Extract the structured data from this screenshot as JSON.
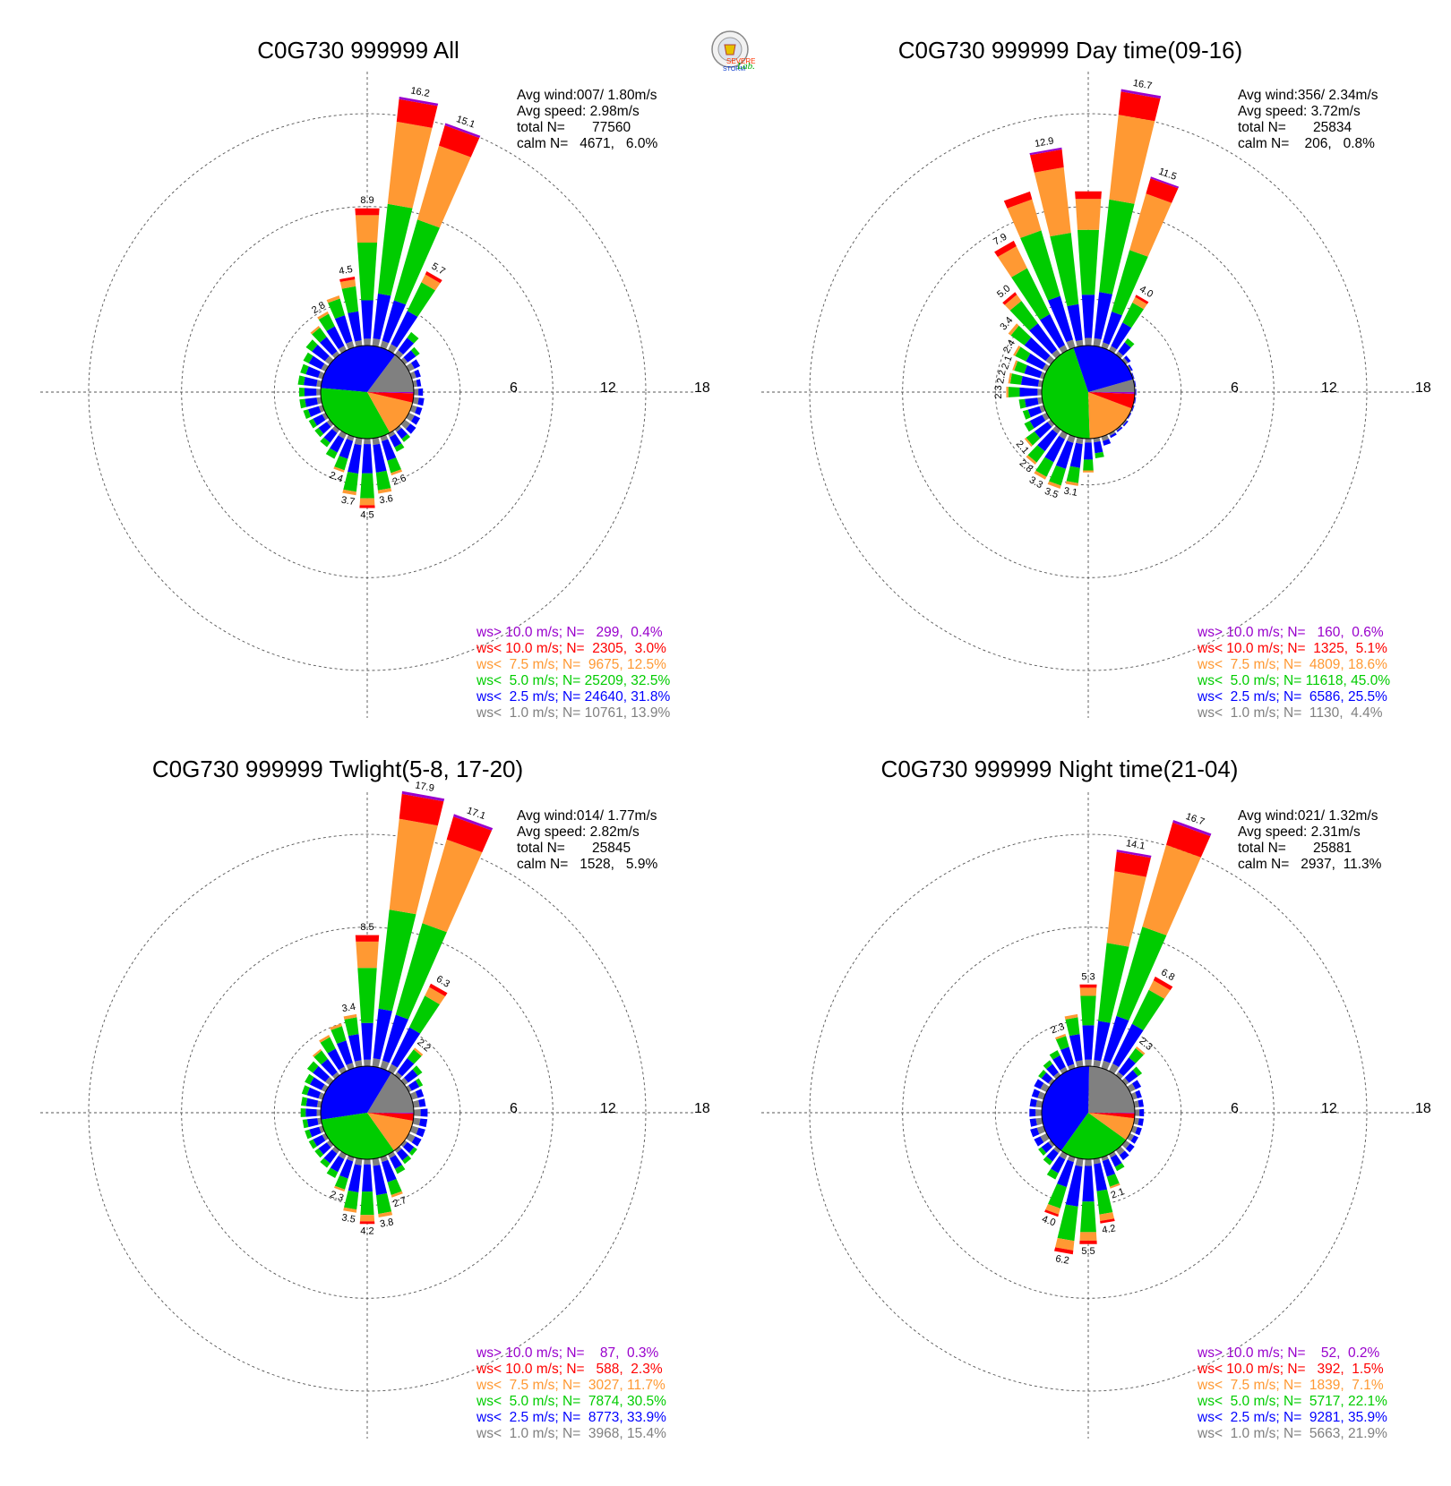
{
  "figure": {
    "colors": {
      "ws_gt_10": "#9900cc",
      "ws_lt_10": "#ff0000",
      "ws_lt_7_5": "#ff9933",
      "ws_lt_5": "#00cc00",
      "ws_lt_2_5": "#0000ff",
      "ws_lt_1": "#808080"
    },
    "logo": {
      "line1": "SEVERE",
      "line2": "STORM",
      "line3": "Lab."
    }
  },
  "chart_data": [
    {
      "type": "wind-rose",
      "title": "C0G730 999999 All",
      "rings": [
        "6",
        "12",
        "18"
      ],
      "rmax": 18,
      "stats": {
        "avg_wind": "Avg wind:007/ 1.80m/s",
        "avg_speed": "Avg speed: 2.98m/s",
        "total": "total N=       77560",
        "calm": "calm N=   4671,   6.0%"
      },
      "legend": [
        {
          "text": "ws> 10.0 m/s; N=   299,  0.4%",
          "color": "#9900cc"
        },
        {
          "text": "ws< 10.0 m/s; N=  2305,  3.0%",
          "color": "#ff0000"
        },
        {
          "text": "ws<  7.5 m/s; N=  9675, 12.5%",
          "color": "#ff9933"
        },
        {
          "text": "ws<  5.0 m/s; N= 25209, 32.5%",
          "color": "#00cc00"
        },
        {
          "text": "ws<  2.5 m/s; N= 24640, 31.8%",
          "color": "#0000ff"
        },
        {
          "text": "ws<  1.0 m/s; N= 10761, 13.9%",
          "color": "#808080"
        }
      ],
      "pie": [
        {
          "bin": "ws<1.0",
          "percent": 13.9
        },
        {
          "bin": "ws<2.5",
          "percent": 31.8
        },
        {
          "bin": "ws<5.0",
          "percent": 32.5
        },
        {
          "bin": "ws<7.5",
          "percent": 12.5
        },
        {
          "bin": "ws<10.0",
          "percent": 3.0
        },
        {
          "bin": "ws>10.0",
          "percent": 0.4
        }
      ],
      "directions": [
        {
          "deg": 0,
          "total": 8.9,
          "label": "8.9"
        },
        {
          "deg": 10,
          "total": 16.2,
          "label": "16.2"
        },
        {
          "deg": 20,
          "total": 15.1,
          "label": "15.1"
        },
        {
          "deg": 30,
          "total": 5.7,
          "label": "5.7"
        },
        {
          "deg": 40,
          "total": 1.8
        },
        {
          "deg": 50,
          "total": 1.2
        },
        {
          "deg": 60,
          "total": 0.8
        },
        {
          "deg": 70,
          "total": 0.6
        },
        {
          "deg": 80,
          "total": 0.5
        },
        {
          "deg": 90,
          "total": 0.6
        },
        {
          "deg": 100,
          "total": 0.7
        },
        {
          "deg": 110,
          "total": 0.7
        },
        {
          "deg": 120,
          "total": 0.8
        },
        {
          "deg": 130,
          "total": 0.9
        },
        {
          "deg": 140,
          "total": 1.0
        },
        {
          "deg": 150,
          "total": 1.3
        },
        {
          "deg": 160,
          "total": 2.6,
          "label": "2.6"
        },
        {
          "deg": 170,
          "total": 3.6,
          "label": "3.6"
        },
        {
          "deg": 180,
          "total": 4.5,
          "label": "4.5"
        },
        {
          "deg": 190,
          "total": 3.7,
          "label": "3.7"
        },
        {
          "deg": 200,
          "total": 2.4,
          "label": "2.4"
        },
        {
          "deg": 210,
          "total": 1.8
        },
        {
          "deg": 220,
          "total": 1.4
        },
        {
          "deg": 230,
          "total": 1.2
        },
        {
          "deg": 240,
          "total": 1.2
        },
        {
          "deg": 250,
          "total": 1.3
        },
        {
          "deg": 260,
          "total": 1.4
        },
        {
          "deg": 270,
          "total": 1.4
        },
        {
          "deg": 280,
          "total": 1.5
        },
        {
          "deg": 290,
          "total": 1.5
        },
        {
          "deg": 300,
          "total": 1.6
        },
        {
          "deg": 310,
          "total": 1.9
        },
        {
          "deg": 320,
          "total": 2.3
        },
        {
          "deg": 330,
          "total": 2.8,
          "label": "2.8"
        },
        {
          "deg": 340,
          "total": 3.5
        },
        {
          "deg": 350,
          "total": 4.5,
          "label": "4.5"
        }
      ]
    },
    {
      "type": "wind-rose",
      "title": "C0G730 999999 Day time(09-16)",
      "rings": [
        "6",
        "12",
        "18"
      ],
      "rmax": 18,
      "stats": {
        "avg_wind": "Avg wind:356/ 2.34m/s",
        "avg_speed": "Avg speed: 3.72m/s",
        "total": "total N=       25834",
        "calm": "calm N=    206,   0.8%"
      },
      "legend": [
        {
          "text": "ws> 10.0 m/s; N=   160,  0.6%",
          "color": "#9900cc"
        },
        {
          "text": "ws< 10.0 m/s; N=  1325,  5.1%",
          "color": "#ff0000"
        },
        {
          "text": "ws<  7.5 m/s; N=  4809, 18.6%",
          "color": "#ff9933"
        },
        {
          "text": "ws<  5.0 m/s; N= 11618, 45.0%",
          "color": "#00cc00"
        },
        {
          "text": "ws<  2.5 m/s; N=  6586, 25.5%",
          "color": "#0000ff"
        },
        {
          "text": "ws<  1.0 m/s; N=  1130,  4.4%",
          "color": "#808080"
        }
      ],
      "pie": [
        {
          "bin": "ws<1.0",
          "percent": 4.4
        },
        {
          "bin": "ws<2.5",
          "percent": 25.5
        },
        {
          "bin": "ws<5.0",
          "percent": 45.0
        },
        {
          "bin": "ws<7.5",
          "percent": 18.6
        },
        {
          "bin": "ws<10.0",
          "percent": 5.1
        },
        {
          "bin": "ws>10.0",
          "percent": 0.6
        }
      ],
      "directions": [
        {
          "deg": 0,
          "total": 10.0
        },
        {
          "deg": 10,
          "total": 16.7,
          "label": "16.7"
        },
        {
          "deg": 20,
          "total": 11.5,
          "label": "11.5"
        },
        {
          "deg": 30,
          "total": 4.0,
          "label": "4.0"
        },
        {
          "deg": 40,
          "total": 1.3
        },
        {
          "deg": 50,
          "total": 0.4
        },
        {
          "deg": 60,
          "total": 0.2
        },
        {
          "deg": 70,
          "total": 0.1
        },
        {
          "deg": 80,
          "total": 0.1
        },
        {
          "deg": 90,
          "total": 0.1
        },
        {
          "deg": 100,
          "total": 0.1
        },
        {
          "deg": 110,
          "total": 0.1
        },
        {
          "deg": 120,
          "total": 0.1
        },
        {
          "deg": 130,
          "total": 0.2
        },
        {
          "deg": 140,
          "total": 0.2
        },
        {
          "deg": 150,
          "total": 0.3
        },
        {
          "deg": 160,
          "total": 0.6
        },
        {
          "deg": 170,
          "total": 1.3
        },
        {
          "deg": 180,
          "total": 2.2
        },
        {
          "deg": 190,
          "total": 3.1,
          "label": "3.1"
        },
        {
          "deg": 200,
          "total": 3.5,
          "label": "3.5"
        },
        {
          "deg": 210,
          "total": 3.3,
          "label": "3.3"
        },
        {
          "deg": 220,
          "total": 2.8,
          "label": "2.8"
        },
        {
          "deg": 230,
          "total": 2.1,
          "label": "2.1"
        },
        {
          "deg": 240,
          "total": 1.6
        },
        {
          "deg": 250,
          "total": 1.4
        },
        {
          "deg": 260,
          "total": 1.5
        },
        {
          "deg": 270,
          "total": 2.3,
          "label": "2.3"
        },
        {
          "deg": 280,
          "total": 2.2,
          "label": "2.2"
        },
        {
          "deg": 290,
          "total": 2.1,
          "label": "2.1"
        },
        {
          "deg": 300,
          "total": 2.4,
          "label": "2.4"
        },
        {
          "deg": 310,
          "total": 3.4,
          "label": "3.4"
        },
        {
          "deg": 320,
          "total": 5.0,
          "label": "5.0"
        },
        {
          "deg": 330,
          "total": 7.9,
          "label": "7.9"
        },
        {
          "deg": 340,
          "total": 10.5
        },
        {
          "deg": 350,
          "total": 12.9,
          "label": "12.9"
        }
      ]
    },
    {
      "type": "wind-rose",
      "title": "C0G730 999999 Twlight(5-8, 17-20)",
      "rings": [
        "6",
        "12",
        "18"
      ],
      "rmax": 18,
      "stats": {
        "avg_wind": "Avg wind:014/ 1.77m/s",
        "avg_speed": "Avg speed: 2.82m/s",
        "total": "total N=       25845",
        "calm": "calm N=   1528,   5.9%"
      },
      "legend": [
        {
          "text": "ws> 10.0 m/s; N=    87,  0.3%",
          "color": "#9900cc"
        },
        {
          "text": "ws< 10.0 m/s; N=   588,  2.3%",
          "color": "#ff0000"
        },
        {
          "text": "ws<  7.5 m/s; N=  3027, 11.7%",
          "color": "#ff9933"
        },
        {
          "text": "ws<  5.0 m/s; N=  7874, 30.5%",
          "color": "#00cc00"
        },
        {
          "text": "ws<  2.5 m/s; N=  8773, 33.9%",
          "color": "#0000ff"
        },
        {
          "text": "ws<  1.0 m/s; N=  3968, 15.4%",
          "color": "#808080"
        }
      ],
      "pie": [
        {
          "bin": "ws<1.0",
          "percent": 15.4
        },
        {
          "bin": "ws<2.5",
          "percent": 33.9
        },
        {
          "bin": "ws<5.0",
          "percent": 30.5
        },
        {
          "bin": "ws<7.5",
          "percent": 11.7
        },
        {
          "bin": "ws<10.0",
          "percent": 2.3
        },
        {
          "bin": "ws>10.0",
          "percent": 0.3
        }
      ],
      "directions": [
        {
          "deg": 0,
          "total": 8.5,
          "label": "8.5"
        },
        {
          "deg": 10,
          "total": 17.9,
          "label": "17.9"
        },
        {
          "deg": 20,
          "total": 17.1,
          "label": "17.1"
        },
        {
          "deg": 30,
          "total": 6.3,
          "label": "6.3"
        },
        {
          "deg": 40,
          "total": 2.2,
          "label": "2.2"
        },
        {
          "deg": 50,
          "total": 1.4
        },
        {
          "deg": 60,
          "total": 1.0
        },
        {
          "deg": 70,
          "total": 0.8
        },
        {
          "deg": 80,
          "total": 0.8
        },
        {
          "deg": 90,
          "total": 0.9
        },
        {
          "deg": 100,
          "total": 0.9
        },
        {
          "deg": 110,
          "total": 0.9
        },
        {
          "deg": 120,
          "total": 0.9
        },
        {
          "deg": 130,
          "total": 1.0
        },
        {
          "deg": 140,
          "total": 1.1
        },
        {
          "deg": 150,
          "total": 1.4
        },
        {
          "deg": 160,
          "total": 2.7,
          "label": "2.7"
        },
        {
          "deg": 170,
          "total": 3.8,
          "label": "3.8"
        },
        {
          "deg": 180,
          "total": 4.2,
          "label": "4.2"
        },
        {
          "deg": 190,
          "total": 3.5,
          "label": "3.5"
        },
        {
          "deg": 200,
          "total": 2.3,
          "label": "2.3"
        },
        {
          "deg": 210,
          "total": 1.7
        },
        {
          "deg": 220,
          "total": 1.4
        },
        {
          "deg": 230,
          "total": 1.2
        },
        {
          "deg": 240,
          "total": 1.2
        },
        {
          "deg": 250,
          "total": 1.2
        },
        {
          "deg": 260,
          "total": 1.2
        },
        {
          "deg": 270,
          "total": 1.3
        },
        {
          "deg": 280,
          "total": 1.3
        },
        {
          "deg": 290,
          "total": 1.4
        },
        {
          "deg": 300,
          "total": 1.5
        },
        {
          "deg": 310,
          "total": 1.8
        },
        {
          "deg": 320,
          "total": 2.1
        },
        {
          "deg": 330,
          "total": 2.6
        },
        {
          "deg": 340,
          "total": 3.0
        },
        {
          "deg": 350,
          "total": 3.4,
          "label": "3.4"
        }
      ]
    },
    {
      "type": "wind-rose",
      "title": "C0G730 999999 Night time(21-04)",
      "rings": [
        "6",
        "12",
        "18"
      ],
      "rmax": 18,
      "stats": {
        "avg_wind": "Avg wind:021/ 1.32m/s",
        "avg_speed": "Avg speed: 2.31m/s",
        "total": "total N=       25881",
        "calm": "calm N=   2937,  11.3%"
      },
      "legend": [
        {
          "text": "ws> 10.0 m/s; N=    52,  0.2%",
          "color": "#9900cc"
        },
        {
          "text": "ws< 10.0 m/s; N=   392,  1.5%",
          "color": "#ff0000"
        },
        {
          "text": "ws<  7.5 m/s; N=  1839,  7.1%",
          "color": "#ff9933"
        },
        {
          "text": "ws<  5.0 m/s; N=  5717, 22.1%",
          "color": "#00cc00"
        },
        {
          "text": "ws<  2.5 m/s; N=  9281, 35.9%",
          "color": "#0000ff"
        },
        {
          "text": "ws<  1.0 m/s; N=  5663, 21.9%",
          "color": "#808080"
        }
      ],
      "pie": [
        {
          "bin": "ws<1.0",
          "percent": 21.9
        },
        {
          "bin": "ws<2.5",
          "percent": 35.9
        },
        {
          "bin": "ws<5.0",
          "percent": 22.1
        },
        {
          "bin": "ws<7.5",
          "percent": 7.1
        },
        {
          "bin": "ws<10.0",
          "percent": 1.5
        },
        {
          "bin": "ws>10.0",
          "percent": 0.2
        }
      ],
      "directions": [
        {
          "deg": 0,
          "total": 5.3,
          "label": "5.3"
        },
        {
          "deg": 10,
          "total": 14.1,
          "label": "14.1"
        },
        {
          "deg": 20,
          "total": 16.7,
          "label": "16.7"
        },
        {
          "deg": 30,
          "total": 6.8,
          "label": "6.8"
        },
        {
          "deg": 40,
          "total": 2.3,
          "label": "2.3"
        },
        {
          "deg": 50,
          "total": 1.3
        },
        {
          "deg": 60,
          "total": 0.8
        },
        {
          "deg": 70,
          "total": 0.6
        },
        {
          "deg": 80,
          "total": 0.6
        },
        {
          "deg": 90,
          "total": 0.6
        },
        {
          "deg": 100,
          "total": 0.6
        },
        {
          "deg": 110,
          "total": 0.6
        },
        {
          "deg": 120,
          "total": 0.6
        },
        {
          "deg": 130,
          "total": 0.7
        },
        {
          "deg": 140,
          "total": 0.8
        },
        {
          "deg": 150,
          "total": 1.2
        },
        {
          "deg": 160,
          "total": 2.1,
          "label": "2.1"
        },
        {
          "deg": 170,
          "total": 4.2,
          "label": "4.2"
        },
        {
          "deg": 180,
          "total": 5.5,
          "label": "5.5"
        },
        {
          "deg": 190,
          "total": 6.2,
          "label": "6.2"
        },
        {
          "deg": 200,
          "total": 4.0,
          "label": "4.0"
        },
        {
          "deg": 210,
          "total": 1.8
        },
        {
          "deg": 220,
          "total": 1.2
        },
        {
          "deg": 230,
          "total": 1.0
        },
        {
          "deg": 240,
          "total": 0.9
        },
        {
          "deg": 250,
          "total": 0.9
        },
        {
          "deg": 260,
          "total": 0.8
        },
        {
          "deg": 270,
          "total": 0.8
        },
        {
          "deg": 280,
          "total": 0.8
        },
        {
          "deg": 290,
          "total": 0.8
        },
        {
          "deg": 300,
          "total": 0.9
        },
        {
          "deg": 310,
          "total": 1.0
        },
        {
          "deg": 320,
          "total": 1.2
        },
        {
          "deg": 330,
          "total": 1.5
        },
        {
          "deg": 340,
          "total": 2.3,
          "label": "2.3"
        },
        {
          "deg": 350,
          "total": 3.4
        }
      ]
    }
  ]
}
